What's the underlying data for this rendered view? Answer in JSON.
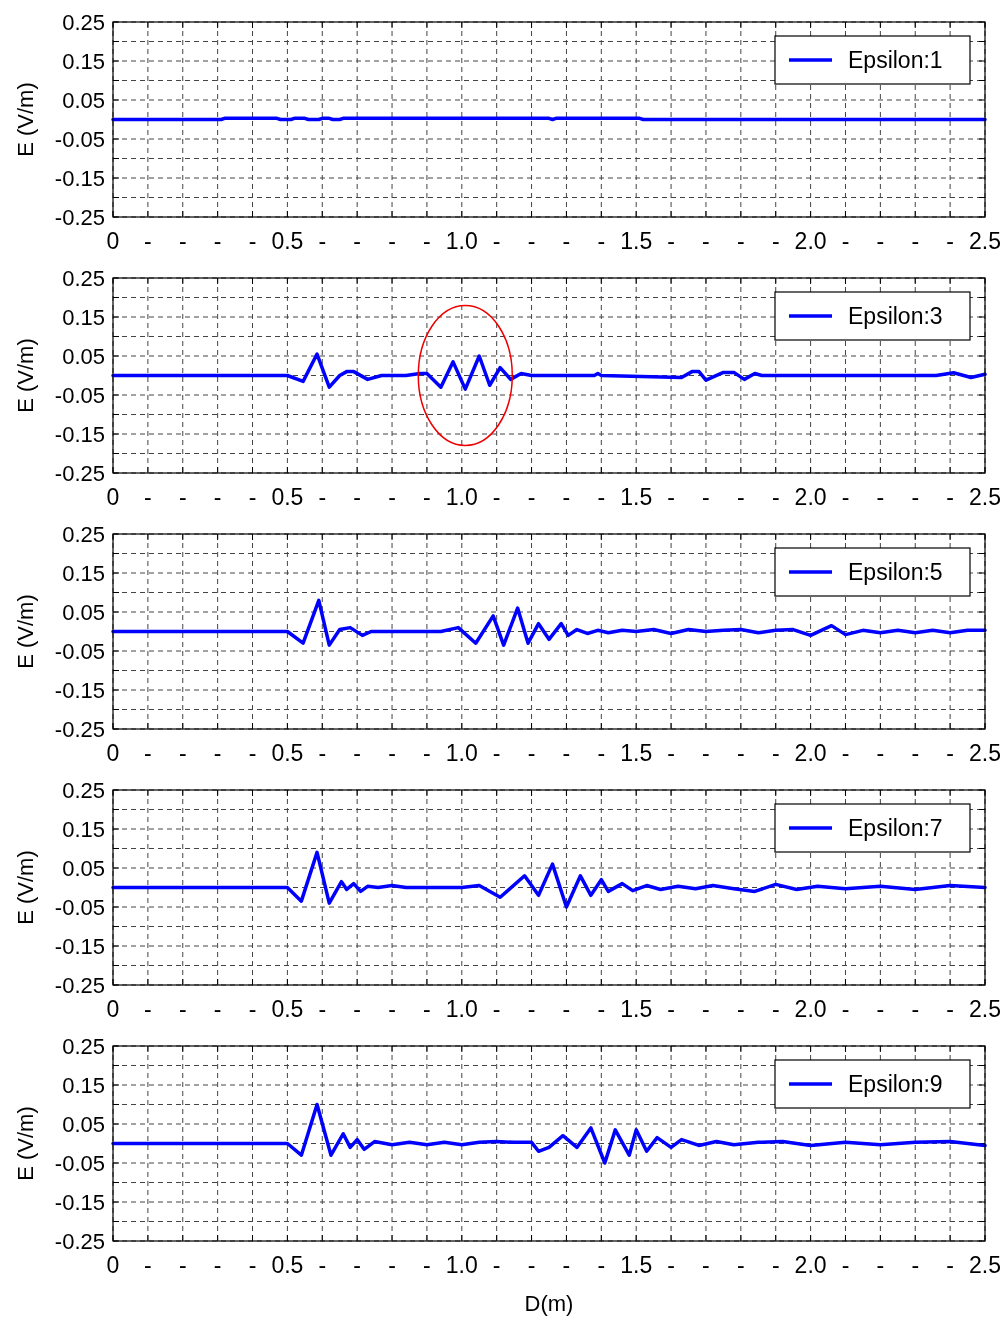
{
  "chart_data": [
    {
      "type": "line",
      "ylabel": "E (V/m)",
      "legend": "top right",
      "grid": true,
      "xlim": [
        0,
        2.5
      ],
      "ylim": [
        -0.25,
        0.25
      ],
      "xticks": [
        0,
        {
          "value": 0.1,
          "label": "-"
        },
        {
          "value": 0.2,
          "label": "-"
        },
        {
          "value": 0.3,
          "label": "-"
        },
        {
          "value": 0.4,
          "label": "-"
        },
        0.5,
        {
          "value": 0.6,
          "label": "-"
        },
        {
          "value": 0.7,
          "label": "-"
        },
        {
          "value": 0.8,
          "label": "-"
        },
        {
          "value": 0.9,
          "label": "-"
        },
        {
          "value": 1,
          "label": "1.0"
        },
        {
          "value": 1.1,
          "label": "-"
        },
        {
          "value": 1.2,
          "label": "-"
        },
        {
          "value": 1.3,
          "label": "-"
        },
        {
          "value": 1.4,
          "label": "-"
        },
        1.5,
        {
          "value": 1.6,
          "label": "-"
        },
        {
          "value": 1.7,
          "label": "-"
        },
        {
          "value": 1.8,
          "label": "-"
        },
        {
          "value": 1.9,
          "label": "-"
        },
        {
          "value": 2,
          "label": "2.0"
        },
        {
          "value": 2.1,
          "label": "-"
        },
        {
          "value": 2.2,
          "label": "-"
        },
        {
          "value": 2.3,
          "label": "-"
        },
        {
          "value": 2.4,
          "label": "-"
        },
        2.5
      ],
      "yticks": [
        0.25,
        {
          "value": 0.2,
          "label": null
        },
        0.15,
        {
          "value": 0.1,
          "label": null
        },
        0.05,
        {
          "value": 0,
          "label": null
        },
        -0.05,
        {
          "value": -0.1,
          "label": null
        },
        -0.15,
        {
          "value": -0.2,
          "label": null
        },
        -0.25
      ],
      "series": [
        {
          "name": "Epsilon:1",
          "color": "#0000ff",
          "x": [
            0,
            0.31,
            0.32,
            0.47,
            0.48,
            0.51,
            0.52,
            0.55,
            0.56,
            0.59,
            0.6,
            0.62,
            0.63,
            0.65,
            0.66,
            1.25,
            1.26,
            1.27,
            1.51,
            1.52,
            2.5
          ],
          "values": [
            0,
            0,
            0.003,
            0.003,
            0,
            0,
            0.003,
            0.003,
            0,
            0,
            0.003,
            0.003,
            0,
            0,
            0.003,
            0.003,
            0,
            0.003,
            0.003,
            0,
            0
          ]
        }
      ]
    },
    {
      "type": "line",
      "ylabel": "E (V/m)",
      "legend": "top right",
      "grid": true,
      "xlim": [
        0,
        2.5
      ],
      "ylim": [
        -0.25,
        0.25
      ],
      "xticks": [
        0,
        {
          "value": 0.1,
          "label": "-"
        },
        {
          "value": 0.2,
          "label": "-"
        },
        {
          "value": 0.3,
          "label": "-"
        },
        {
          "value": 0.4,
          "label": "-"
        },
        0.5,
        {
          "value": 0.6,
          "label": "-"
        },
        {
          "value": 0.7,
          "label": "-"
        },
        {
          "value": 0.8,
          "label": "-"
        },
        {
          "value": 0.9,
          "label": "-"
        },
        {
          "value": 1,
          "label": "1.0"
        },
        {
          "value": 1.1,
          "label": "-"
        },
        {
          "value": 1.2,
          "label": "-"
        },
        {
          "value": 1.3,
          "label": "-"
        },
        {
          "value": 1.4,
          "label": "-"
        },
        1.5,
        {
          "value": 1.6,
          "label": "-"
        },
        {
          "value": 1.7,
          "label": "-"
        },
        {
          "value": 1.8,
          "label": "-"
        },
        {
          "value": 1.9,
          "label": "-"
        },
        {
          "value": 2,
          "label": "2.0"
        },
        {
          "value": 2.1,
          "label": "-"
        },
        {
          "value": 2.2,
          "label": "-"
        },
        {
          "value": 2.3,
          "label": "-"
        },
        {
          "value": 2.4,
          "label": "-"
        },
        2.5
      ],
      "yticks": [
        0.25,
        {
          "value": 0.2,
          "label": null
        },
        0.15,
        {
          "value": 0.1,
          "label": null
        },
        0.05,
        {
          "value": 0,
          "label": null
        },
        -0.05,
        {
          "value": -0.1,
          "label": null
        },
        -0.15,
        {
          "value": -0.2,
          "label": null
        },
        -0.25
      ],
      "series": [
        {
          "name": "Epsilon:3",
          "color": "#0000ff",
          "x": [
            0,
            0.5,
            0.545,
            0.585,
            0.62,
            0.65,
            0.67,
            0.69,
            0.73,
            0.77,
            0.84,
            0.88,
            0.9,
            0.94,
            0.975,
            1.01,
            1.05,
            1.08,
            1.11,
            1.14,
            1.17,
            1.2,
            1.38,
            1.39,
            1.4,
            1.63,
            1.66,
            1.68,
            1.7,
            1.75,
            1.78,
            1.81,
            1.84,
            1.86,
            2.36,
            2.41,
            2.46,
            2.5
          ],
          "values": [
            0,
            0,
            -0.015,
            0.055,
            -0.03,
            0,
            0.01,
            0.01,
            -0.01,
            0,
            0,
            0.005,
            0.005,
            -0.03,
            0.035,
            -0.035,
            0.05,
            -0.025,
            0.02,
            -0.01,
            0.005,
            0,
            0,
            0.005,
            0,
            -0.005,
            0.01,
            0.01,
            -0.012,
            0.008,
            0.008,
            -0.01,
            0.005,
            0,
            0,
            0.007,
            -0.005,
            0.003
          ]
        }
      ]
    },
    {
      "type": "line",
      "ylabel": "E (V/m)",
      "legend": "top right",
      "grid": true,
      "xlim": [
        0,
        2.5
      ],
      "ylim": [
        -0.25,
        0.25
      ],
      "xticks": [
        0,
        {
          "value": 0.1,
          "label": "-"
        },
        {
          "value": 0.2,
          "label": "-"
        },
        {
          "value": 0.3,
          "label": "-"
        },
        {
          "value": 0.4,
          "label": "-"
        },
        0.5,
        {
          "value": 0.6,
          "label": "-"
        },
        {
          "value": 0.7,
          "label": "-"
        },
        {
          "value": 0.8,
          "label": "-"
        },
        {
          "value": 0.9,
          "label": "-"
        },
        {
          "value": 1,
          "label": "1.0"
        },
        {
          "value": 1.1,
          "label": "-"
        },
        {
          "value": 1.2,
          "label": "-"
        },
        {
          "value": 1.3,
          "label": "-"
        },
        {
          "value": 1.4,
          "label": "-"
        },
        1.5,
        {
          "value": 1.6,
          "label": "-"
        },
        {
          "value": 1.7,
          "label": "-"
        },
        {
          "value": 1.8,
          "label": "-"
        },
        {
          "value": 1.9,
          "label": "-"
        },
        {
          "value": 2,
          "label": "2.0"
        },
        {
          "value": 2.1,
          "label": "-"
        },
        {
          "value": 2.2,
          "label": "-"
        },
        {
          "value": 2.3,
          "label": "-"
        },
        {
          "value": 2.4,
          "label": "-"
        },
        2.5
      ],
      "yticks": [
        0.25,
        {
          "value": 0.2,
          "label": null
        },
        0.15,
        {
          "value": 0.1,
          "label": null
        },
        0.05,
        {
          "value": 0,
          "label": null
        },
        -0.05,
        {
          "value": -0.1,
          "label": null
        },
        -0.15,
        {
          "value": -0.2,
          "label": null
        },
        -0.25
      ],
      "series": [
        {
          "name": "Epsilon:5",
          "color": "#0000ff",
          "x": [
            0,
            0.5,
            0.545,
            0.59,
            0.62,
            0.65,
            0.68,
            0.715,
            0.74,
            0.94,
            0.99,
            1.04,
            1.09,
            1.12,
            1.16,
            1.19,
            1.22,
            1.25,
            1.285,
            1.305,
            1.33,
            1.36,
            1.39,
            1.42,
            1.46,
            1.5,
            1.55,
            1.6,
            1.65,
            1.7,
            1.75,
            1.8,
            1.85,
            1.9,
            1.95,
            2.0,
            2.06,
            2.1,
            2.15,
            2.2,
            2.25,
            2.3,
            2.35,
            2.4,
            2.45,
            2.5
          ],
          "values": [
            0,
            0,
            -0.03,
            0.08,
            -0.035,
            0.005,
            0.01,
            -0.01,
            0,
            0,
            0.01,
            -0.03,
            0.04,
            -0.035,
            0.06,
            -0.03,
            0.02,
            -0.02,
            0.02,
            -0.01,
            0.005,
            -0.005,
            0.003,
            -0.003,
            0.003,
            0,
            0.005,
            -0.005,
            0.005,
            0,
            0.003,
            0.005,
            -0.003,
            0.003,
            0.005,
            -0.01,
            0.015,
            -0.008,
            0.003,
            -0.003,
            0.003,
            -0.003,
            0.003,
            -0.003,
            0.003,
            0.003
          ]
        }
      ]
    },
    {
      "type": "line",
      "ylabel": "E (V/m)",
      "legend": "top right",
      "grid": true,
      "xlim": [
        0,
        2.5
      ],
      "ylim": [
        -0.25,
        0.25
      ],
      "xticks": [
        0,
        {
          "value": 0.1,
          "label": "-"
        },
        {
          "value": 0.2,
          "label": "-"
        },
        {
          "value": 0.3,
          "label": "-"
        },
        {
          "value": 0.4,
          "label": "-"
        },
        0.5,
        {
          "value": 0.6,
          "label": "-"
        },
        {
          "value": 0.7,
          "label": "-"
        },
        {
          "value": 0.8,
          "label": "-"
        },
        {
          "value": 0.9,
          "label": "-"
        },
        {
          "value": 1,
          "label": "1.0"
        },
        {
          "value": 1.1,
          "label": "-"
        },
        {
          "value": 1.2,
          "label": "-"
        },
        {
          "value": 1.3,
          "label": "-"
        },
        {
          "value": 1.4,
          "label": "-"
        },
        1.5,
        {
          "value": 1.6,
          "label": "-"
        },
        {
          "value": 1.7,
          "label": "-"
        },
        {
          "value": 1.8,
          "label": "-"
        },
        {
          "value": 1.9,
          "label": "-"
        },
        {
          "value": 2,
          "label": "2.0"
        },
        {
          "value": 2.1,
          "label": "-"
        },
        {
          "value": 2.2,
          "label": "-"
        },
        {
          "value": 2.3,
          "label": "-"
        },
        {
          "value": 2.4,
          "label": "-"
        },
        2.5
      ],
      "yticks": [
        0.25,
        {
          "value": 0.2,
          "label": null
        },
        0.15,
        {
          "value": 0.1,
          "label": null
        },
        0.05,
        {
          "value": 0,
          "label": null
        },
        -0.05,
        {
          "value": -0.1,
          "label": null
        },
        -0.15,
        {
          "value": -0.2,
          "label": null
        },
        -0.25
      ],
      "series": [
        {
          "name": "Epsilon:7",
          "color": "#0000ff",
          "x": [
            0,
            0.5,
            0.54,
            0.585,
            0.62,
            0.655,
            0.67,
            0.69,
            0.71,
            0.73,
            0.76,
            0.8,
            0.84,
            1.0,
            1.05,
            1.11,
            1.18,
            1.22,
            1.26,
            1.3,
            1.34,
            1.37,
            1.4,
            1.42,
            1.46,
            1.49,
            1.53,
            1.57,
            1.62,
            1.67,
            1.72,
            1.78,
            1.84,
            1.9,
            1.96,
            2.02,
            2.1,
            2.2,
            2.3,
            2.4,
            2.5
          ],
          "values": [
            0,
            0,
            -0.035,
            0.09,
            -0.04,
            0.015,
            -0.005,
            0.01,
            -0.01,
            0.003,
            0,
            0.005,
            0,
            0,
            0.005,
            -0.025,
            0.03,
            -0.02,
            0.06,
            -0.05,
            0.03,
            -0.02,
            0.02,
            -0.01,
            0.01,
            -0.008,
            0.005,
            -0.005,
            0.003,
            -0.003,
            0.005,
            -0.003,
            -0.01,
            0.008,
            -0.005,
            0.003,
            -0.003,
            0.003,
            -0.005,
            0.005,
            0
          ]
        }
      ]
    },
    {
      "type": "line",
      "xlabel": "D(m)",
      "ylabel": "E (V/m)",
      "legend": "top right",
      "grid": true,
      "xlim": [
        0,
        2.5
      ],
      "ylim": [
        -0.25,
        0.25
      ],
      "xticks": [
        0,
        {
          "value": 0.1,
          "label": "-"
        },
        {
          "value": 0.2,
          "label": "-"
        },
        {
          "value": 0.3,
          "label": "-"
        },
        {
          "value": 0.4,
          "label": "-"
        },
        0.5,
        {
          "value": 0.6,
          "label": "-"
        },
        {
          "value": 0.7,
          "label": "-"
        },
        {
          "value": 0.8,
          "label": "-"
        },
        {
          "value": 0.9,
          "label": "-"
        },
        {
          "value": 1,
          "label": "1.0"
        },
        {
          "value": 1.1,
          "label": "-"
        },
        {
          "value": 1.2,
          "label": "-"
        },
        {
          "value": 1.3,
          "label": "-"
        },
        {
          "value": 1.4,
          "label": "-"
        },
        1.5,
        {
          "value": 1.6,
          "label": "-"
        },
        {
          "value": 1.7,
          "label": "-"
        },
        {
          "value": 1.8,
          "label": "-"
        },
        {
          "value": 1.9,
          "label": "-"
        },
        {
          "value": 2,
          "label": "2.0"
        },
        {
          "value": 2.1,
          "label": "-"
        },
        {
          "value": 2.2,
          "label": "-"
        },
        {
          "value": 2.3,
          "label": "-"
        },
        {
          "value": 2.4,
          "label": "-"
        },
        2.5
      ],
      "yticks": [
        0.25,
        {
          "value": 0.2,
          "label": null
        },
        0.15,
        {
          "value": 0.1,
          "label": null
        },
        0.05,
        {
          "value": 0,
          "label": null
        },
        -0.05,
        {
          "value": -0.1,
          "label": null
        },
        -0.15,
        {
          "value": -0.2,
          "label": null
        },
        -0.25
      ],
      "series": [
        {
          "name": "Epsilon:9",
          "color": "#0000ff",
          "x": [
            0,
            0.5,
            0.54,
            0.585,
            0.625,
            0.66,
            0.68,
            0.7,
            0.72,
            0.75,
            0.8,
            0.85,
            0.9,
            0.95,
            1.0,
            1.05,
            1.1,
            1.15,
            1.2,
            1.22,
            1.25,
            1.29,
            1.33,
            1.37,
            1.41,
            1.44,
            1.48,
            1.5,
            1.53,
            1.56,
            1.6,
            1.63,
            1.68,
            1.73,
            1.78,
            1.85,
            1.92,
            2.0,
            2.1,
            2.2,
            2.3,
            2.4,
            2.5
          ],
          "values": [
            0,
            0,
            -0.03,
            0.1,
            -0.03,
            0.025,
            -0.01,
            0.01,
            -0.015,
            0.005,
            -0.003,
            0.003,
            -0.003,
            0.003,
            -0.003,
            0.003,
            0.005,
            0.003,
            0.003,
            -0.02,
            -0.01,
            0.02,
            -0.01,
            0.04,
            -0.05,
            0.035,
            -0.03,
            0.035,
            -0.02,
            0.015,
            -0.01,
            0.01,
            -0.005,
            0.005,
            -0.003,
            0.003,
            0.005,
            -0.005,
            0.003,
            -0.003,
            0.003,
            0.005,
            -0.005
          ]
        }
      ]
    }
  ]
}
